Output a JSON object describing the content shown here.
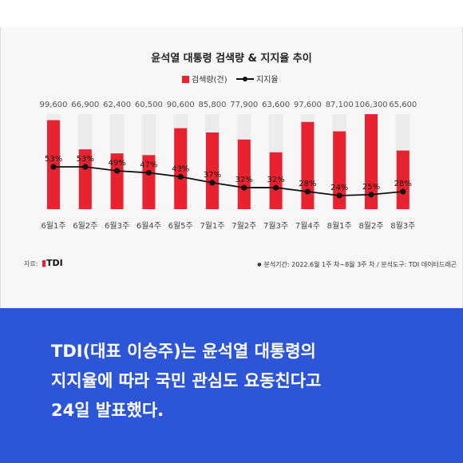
{
  "chart_data": {
    "type": "bar",
    "title": "윤석열 대통령 검색량 & 지지율 추이",
    "categories": [
      "6월1주",
      "6월2주",
      "6월3주",
      "6월4주",
      "6월5주",
      "7월1주",
      "7월2주",
      "7월3주",
      "7월4주",
      "8월1주",
      "8월2주",
      "8월3주"
    ],
    "series": [
      {
        "name": "검색량(건)",
        "type": "bar",
        "color": "#e8232f",
        "values": [
          99600,
          66900,
          62400,
          60500,
          90600,
          85800,
          77900,
          63600,
          97600,
          87100,
          106300,
          65600
        ],
        "labels": [
          "99,600",
          "66,900",
          "62,400",
          "60,500",
          "90,600",
          "85,800",
          "77,900",
          "63,600",
          "97,600",
          "87,100",
          "106,300",
          "65,600"
        ]
      },
      {
        "name": "지지율",
        "type": "line",
        "color": "#111111",
        "values": [
          53,
          53,
          49,
          47,
          43,
          37,
          32,
          32,
          28,
          24,
          25,
          28
        ],
        "labels": [
          "53%",
          "53%",
          "49%",
          "47%",
          "43%",
          "37%",
          "32%",
          "32%",
          "28%",
          "24%",
          "25%",
          "28%"
        ]
      }
    ],
    "legend_position": "top-center",
    "grid": false
  },
  "source": {
    "label": "자료:",
    "logo": "TDI",
    "period": "분석기간: 2022.6월 1주 차~8월 3주 차 / 분석도구: TDI 데이터드래곤"
  },
  "caption": {
    "lines": [
      "TDI(대표 이승주)는 윤석열 대통령의",
      "지지율에 따라 국민 관심도 요동친다고",
      "24일 발표했다."
    ]
  }
}
